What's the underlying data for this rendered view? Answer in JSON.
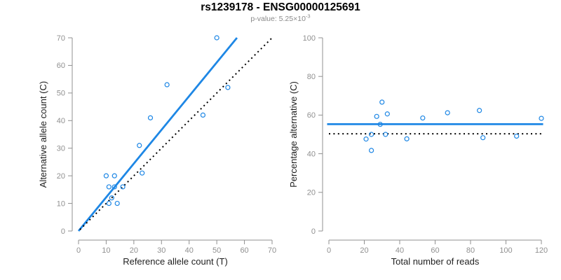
{
  "figure": {
    "title": "rs1239178 - ENSG00000125691",
    "subtitle_base": "p-value: 5.25×10",
    "subtitle_exponent": "-3"
  },
  "colors": {
    "accent_blue": "#1E87E5",
    "axis_gray": "#909090",
    "label_black": "#1f1f1f",
    "dotted_black": "#000000"
  },
  "chart_data": [
    {
      "type": "scatter",
      "title": "",
      "xlabel": "Reference allele count (T)",
      "ylabel": "Alternative allele count (C)",
      "xlim": [
        0,
        70
      ],
      "ylim": [
        0,
        70
      ],
      "xticks": [
        0,
        10,
        20,
        30,
        40,
        50,
        60,
        70
      ],
      "yticks": [
        0,
        10,
        20,
        30,
        40,
        50,
        60,
        70
      ],
      "grid": false,
      "legend": "none",
      "marker": "open-circle",
      "points": [
        [
          50,
          70
        ],
        [
          32,
          53
        ],
        [
          54,
          52
        ],
        [
          45,
          42
        ],
        [
          26,
          41
        ],
        [
          22,
          31
        ],
        [
          23,
          21
        ],
        [
          10,
          20
        ],
        [
          13,
          20
        ],
        [
          11,
          16
        ],
        [
          13,
          16
        ],
        [
          16,
          16
        ],
        [
          12,
          12
        ],
        [
          11,
          10
        ],
        [
          14,
          10
        ]
      ],
      "lines": [
        {
          "name": "fit-line",
          "style": "solid",
          "color": "#1E87E5",
          "width": 2.8,
          "from": [
            0,
            0
          ],
          "to": [
            57.3,
            70
          ]
        },
        {
          "name": "identity-line",
          "style": "dotted",
          "color": "#000000",
          "width": 2,
          "from": [
            0.5,
            0.5
          ],
          "to": [
            70,
            70
          ]
        }
      ]
    },
    {
      "type": "scatter",
      "title": "",
      "xlabel": "Total number of reads",
      "ylabel": "Percentage alternative (C)",
      "xlim": [
        0,
        120
      ],
      "ylim": [
        0,
        100
      ],
      "xticks": [
        0,
        20,
        40,
        60,
        80,
        100,
        120
      ],
      "yticks": [
        0,
        20,
        40,
        60,
        80,
        100
      ],
      "grid": false,
      "legend": "none",
      "marker": "open-circle",
      "points": [
        [
          120,
          58.3
        ],
        [
          106,
          49.1
        ],
        [
          87,
          48.3
        ],
        [
          85,
          62.4
        ],
        [
          67,
          61.2
        ],
        [
          53,
          58.5
        ],
        [
          44,
          47.7
        ],
        [
          33,
          60.6
        ],
        [
          30,
          66.7
        ],
        [
          29,
          55.2
        ],
        [
          27,
          59.3
        ],
        [
          32,
          50.0
        ],
        [
          24,
          50.0
        ],
        [
          21,
          47.6
        ],
        [
          24,
          41.7
        ]
      ],
      "lines": [
        {
          "name": "mean-line",
          "style": "solid",
          "color": "#1E87E5",
          "width": 2.8,
          "from": [
            -1,
            55.3
          ],
          "to": [
            121,
            55.3
          ]
        },
        {
          "name": "expected-line",
          "style": "dotted",
          "color": "#000000",
          "width": 2,
          "from": [
            0,
            50.3
          ],
          "to": [
            120,
            50.3
          ]
        }
      ]
    }
  ]
}
